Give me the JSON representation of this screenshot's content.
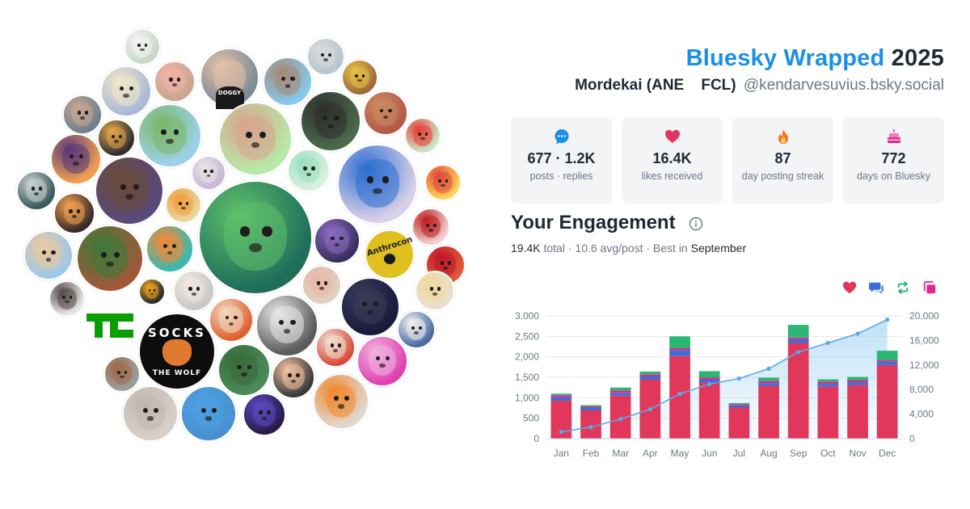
{
  "header": {
    "brand": "Bluesky Wrapped",
    "year": "2025",
    "display_name": "Mordekai (ANE    FCL)",
    "handle": "@kendarvesuvius.bsky.social"
  },
  "stats": [
    {
      "value": "677 · 1.2K",
      "label": "posts · replies",
      "icon": "speech-bubble-icon"
    },
    {
      "value": "16.4K",
      "label": "likes received",
      "icon": "heart-icon"
    },
    {
      "value": "87",
      "label": "day posting streak",
      "icon": "flame-icon"
    },
    {
      "value": "772",
      "label": "days on Bluesky",
      "icon": "cake-icon"
    }
  ],
  "engagement": {
    "title": "Your Engagement",
    "total_value": "19.4K",
    "total_label": "total",
    "avg_text": "10.6 avg/post",
    "best_label": "Best in",
    "best_month": "September"
  },
  "avatar_text": {
    "socks_top": "SOCKS",
    "socks_bottom": "THE WOLF",
    "anthrocon": "Anthrocon",
    "doggy": "DOGGY"
  },
  "colors": {
    "brand": "#1a8fe6",
    "likes": "#e0375a",
    "replies": "#3b6fd6",
    "reposts": "#2bb673",
    "quotes": "#e0298f",
    "line": "#5aa9e6"
  },
  "chart_data": {
    "type": "bar",
    "categories": [
      "Jan",
      "Feb",
      "Mar",
      "Apr",
      "May",
      "Jun",
      "Jul",
      "Aug",
      "Sep",
      "Oct",
      "Nov",
      "Dec"
    ],
    "series": [
      {
        "values": [
          930,
          690,
          1050,
          1440,
          2020,
          1370,
          760,
          1290,
          2340,
          1270,
          1310,
          1800
        ]
      },
      {
        "values": [
          80,
          60,
          70,
          80,
          140,
          70,
          50,
          70,
          90,
          70,
          70,
          80
        ]
      },
      {
        "values": [
          50,
          30,
          60,
          50,
          50,
          50,
          30,
          50,
          40,
          50,
          50,
          40
        ]
      },
      {
        "values": [
          40,
          40,
          70,
          70,
          290,
          160,
          30,
          80,
          310,
          60,
          80,
          230
        ]
      }
    ],
    "line": {
      "values": [
        1100,
        1900,
        3200,
        4800,
        7300,
        8900,
        9800,
        11400,
        14100,
        15600,
        17100,
        19400
      ]
    },
    "ylim_left": [
      0,
      3000
    ],
    "yticks_left": [
      "0",
      "500",
      "1,000",
      "1,500",
      "2,000",
      "2,500",
      "3,000"
    ],
    "ylim_right": [
      0,
      20000
    ],
    "yticks_right": [
      "0",
      "4,000",
      "8,000",
      "12,000",
      "16,000",
      "20,000"
    ],
    "grid": true
  }
}
